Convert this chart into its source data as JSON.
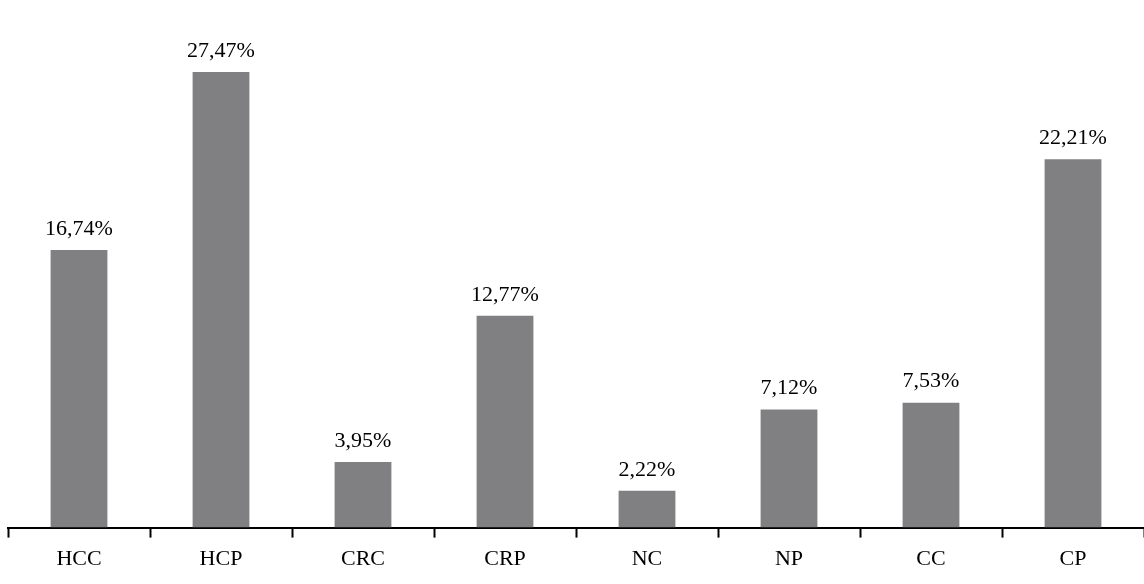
{
  "chart_data": {
    "type": "bar",
    "categories": [
      "HCC",
      "HCP",
      "CRC",
      "CRP",
      "NC",
      "NP",
      "CC",
      "CP"
    ],
    "values": [
      16.74,
      27.47,
      3.95,
      12.77,
      2.22,
      7.12,
      7.53,
      22.21
    ],
    "value_labels": [
      "16,74%",
      "27,47%",
      "3,95%",
      "12,77%",
      "2,22%",
      "7,12%",
      "7,53%",
      "22,21%"
    ],
    "color": "#808083",
    "grid": false,
    "legend": false,
    "tick_labels": "x"
  }
}
